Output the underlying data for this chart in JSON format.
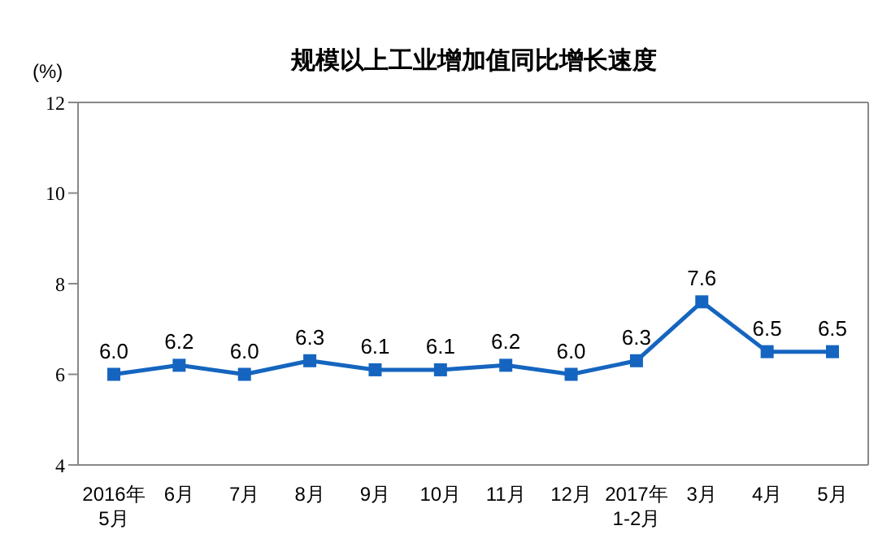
{
  "chart_data": {
    "type": "line",
    "title": "规模以上工业增加值同比增长速度",
    "ylabel": "(%)",
    "categories": [
      "2016年\n5月",
      "6月",
      "7月",
      "8月",
      "9月",
      "10月",
      "11月",
      "12月",
      "2017年\n1-2月",
      "3月",
      "4月",
      "5月"
    ],
    "series": [
      {
        "color": "#1565c0",
        "values": [
          6.0,
          6.2,
          6.0,
          6.3,
          6.1,
          6.1,
          6.2,
          6.0,
          6.3,
          7.6,
          6.5,
          6.5
        ],
        "value_labels": [
          "6.0",
          "6.2",
          "6.0",
          "6.3",
          "6.1",
          "6.1",
          "6.2",
          "6.0",
          "6.3",
          "7.6",
          "6.5",
          "6.5"
        ]
      }
    ],
    "ylim": [
      4,
      12
    ],
    "yticks": [
      4,
      6,
      8,
      10,
      12
    ],
    "grid": false,
    "legend": false,
    "marker": "square",
    "line_style": "solid"
  }
}
